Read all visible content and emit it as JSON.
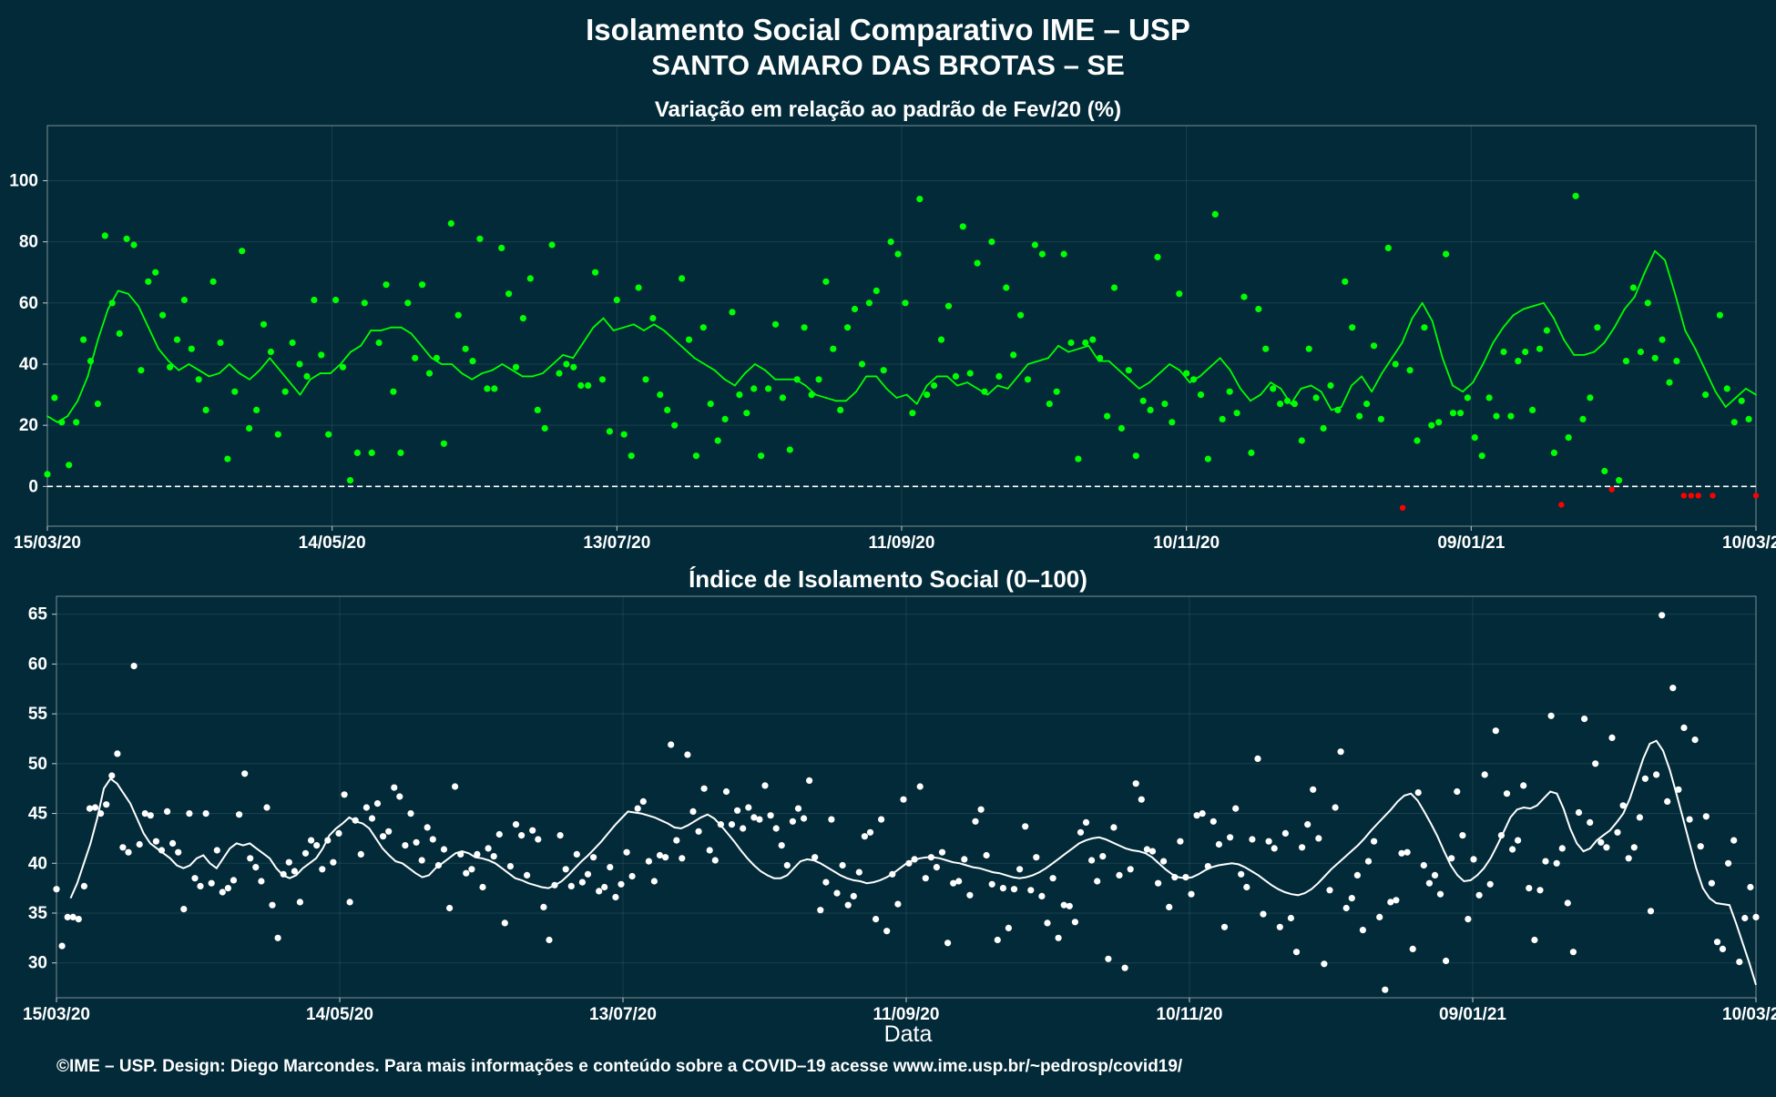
{
  "page": {
    "title_line1": "Isolamento Social Comparativo IME – USP",
    "title_line2": "SANTO AMARO DAS BROTAS – SE",
    "footer": "©IME – USP. Design: Diego Marcondes. Para mais informações e conteúdo sobre a COVID–19 acesse www.ime.usp.br/~pedrosp/covid19/"
  },
  "colors": {
    "background": "#022a38",
    "positive_points": "#00ff00",
    "negative_points": "#ff0000",
    "index_points": "#ffffff",
    "axis_text": "#ffffff"
  },
  "chart_data": [
    {
      "type": "scatter",
      "title": "Variação em relação ao padrão de Fev/20 (%)",
      "xlabel": "",
      "ylabel": "",
      "x_tick_labels": [
        "15/03/20",
        "14/05/20",
        "13/07/20",
        "11/09/20",
        "10/11/20",
        "09/01/21",
        "10/03/21"
      ],
      "x_range_days": [
        0,
        360
      ],
      "ylim": [
        -13,
        118
      ],
      "y_ticks": [
        0,
        20,
        40,
        60,
        80,
        100
      ],
      "reference_line": 0,
      "grid": true,
      "series": [
        {
          "role": "daily",
          "values": [
            4,
            29,
            21,
            7,
            21,
            48,
            41,
            27,
            82,
            60,
            50,
            81,
            79,
            38,
            67,
            70,
            56,
            39,
            48,
            61,
            45,
            35,
            25,
            67,
            47,
            9,
            31,
            77,
            19,
            25,
            53,
            44,
            17,
            31,
            47,
            40,
            36,
            61,
            43,
            17,
            61,
            39,
            2,
            11,
            60,
            11,
            47,
            66,
            31,
            11,
            60,
            42,
            66,
            37,
            42,
            14,
            86,
            56,
            45,
            41,
            81,
            32,
            32,
            78,
            63,
            39,
            55,
            68,
            25,
            19,
            79,
            37,
            40,
            39,
            33,
            33,
            70,
            35,
            18,
            61,
            17,
            10,
            65,
            35,
            55,
            30,
            25,
            20,
            68,
            48,
            10,
            52,
            27,
            15,
            22,
            57,
            30,
            24,
            32,
            10,
            32,
            53,
            29,
            12,
            35,
            52,
            30,
            35,
            67,
            45,
            25,
            52,
            58,
            40,
            60,
            64,
            38,
            80,
            76,
            60,
            24,
            94,
            30,
            33,
            48,
            59,
            36,
            85,
            37,
            73,
            31,
            80,
            36,
            65,
            43,
            56,
            35,
            79,
            76,
            27,
            31,
            76,
            47,
            9,
            47,
            48,
            42,
            23,
            65,
            19,
            38,
            10,
            28,
            25,
            75,
            27,
            21,
            63,
            37,
            35,
            30,
            9,
            89,
            22,
            31,
            24,
            62,
            11,
            58,
            45,
            32,
            27,
            28,
            27,
            15,
            45,
            29,
            19,
            33,
            25,
            67,
            52,
            23,
            27,
            46,
            22,
            78,
            40,
            -7,
            38,
            15,
            52,
            20,
            21,
            76,
            24,
            24,
            29,
            16,
            10,
            29,
            23,
            44,
            23,
            41,
            44,
            25,
            45,
            51,
            11,
            -6,
            16,
            95,
            22,
            29,
            52,
            5,
            -1,
            2,
            41,
            65,
            44,
            60,
            42,
            48,
            34,
            41,
            -3,
            -3,
            -3,
            30,
            -3,
            56,
            32,
            21,
            28,
            22,
            -3
          ],
          "note": "green = value > 0, red = value < 0"
        },
        {
          "role": "moving-average",
          "values": [
            23,
            21,
            23,
            28,
            36,
            48,
            58,
            64,
            63,
            59,
            52,
            45,
            41,
            38,
            40,
            38,
            36,
            37,
            40,
            37,
            35,
            38,
            42,
            38,
            34,
            30,
            35,
            37,
            37,
            40,
            44,
            46,
            51,
            51,
            52,
            52,
            50,
            46,
            42,
            40,
            40,
            37,
            35,
            37,
            38,
            40,
            38,
            36,
            36,
            37,
            40,
            43,
            42,
            47,
            52,
            55,
            51,
            52,
            53,
            51,
            53,
            51,
            48,
            45,
            42,
            40,
            38,
            35,
            33,
            37,
            40,
            38,
            35,
            35,
            35,
            33,
            30,
            29,
            28,
            28,
            31,
            36,
            36,
            32,
            29,
            30,
            27,
            33,
            36,
            36,
            33,
            34,
            32,
            30,
            33,
            32,
            36,
            40,
            41,
            42,
            46,
            44,
            45,
            46,
            41,
            41,
            38,
            35,
            32,
            34,
            37,
            40,
            38,
            34,
            36,
            39,
            42,
            38,
            32,
            28,
            30,
            34,
            32,
            27,
            32,
            33,
            31,
            25,
            26,
            33,
            36,
            31,
            37,
            42,
            47,
            55,
            60,
            54,
            42,
            33,
            31,
            34,
            40,
            47,
            52,
            56,
            58,
            59,
            60,
            55,
            48,
            43,
            43,
            44,
            47,
            52,
            58,
            62,
            70,
            77,
            74,
            63,
            51,
            45,
            38,
            31,
            26,
            29,
            32,
            30
          ]
        }
      ]
    },
    {
      "type": "scatter",
      "title": "Índice de Isolamento Social (0–100)",
      "xlabel": "Data",
      "ylabel": "",
      "x_tick_labels": [
        "15/03/20",
        "14/05/20",
        "13/07/20",
        "11/09/20",
        "10/11/20",
        "09/01/21",
        "10/03/21"
      ],
      "x_range_days": [
        0,
        360
      ],
      "ylim": [
        26.5,
        66.8
      ],
      "y_ticks": [
        30,
        35,
        40,
        45,
        50,
        55,
        60,
        65
      ],
      "grid": true,
      "series": [
        {
          "role": "daily",
          "values": [
            37.4,
            31.7,
            34.6,
            34.6,
            34.4,
            37.7,
            45.5,
            45.6,
            45.0,
            45.9,
            48.8,
            51.0,
            41.6,
            41.1,
            59.8,
            41.9,
            45.0,
            44.8,
            42.2,
            41.3,
            45.2,
            42.0,
            41.1,
            35.4,
            45.0,
            38.5,
            37.7,
            45.0,
            38.0,
            41.3,
            37.1,
            37.5,
            38.3,
            44.9,
            49.0,
            40.5,
            39.6,
            38.2,
            45.6,
            35.8,
            32.5,
            38.9,
            40.1,
            39.2,
            36.1,
            41.0,
            42.3,
            41.8,
            39.4,
            42.3,
            40.1,
            43.0,
            46.9,
            36.1,
            44.3,
            40.9,
            45.6,
            44.5,
            46.0,
            42.7,
            43.2,
            47.6,
            46.7,
            41.8,
            45.0,
            42.1,
            40.3,
            43.6,
            42.4,
            39.8,
            41.4,
            35.5,
            47.7,
            40.9,
            39.0,
            39.4,
            40.9,
            37.6,
            41.5,
            40.7,
            42.9,
            34.0,
            39.7,
            43.9,
            42.8,
            38.8,
            43.3,
            42.4,
            35.6,
            32.3,
            37.8,
            42.8,
            39.4,
            37.7,
            40.9,
            38.1,
            38.9,
            40.6,
            37.2,
            37.6,
            39.6,
            36.6,
            37.9,
            41.1,
            38.7,
            45.5,
            46.2,
            40.2,
            38.2,
            40.8,
            40.6,
            51.9,
            42.3,
            40.5,
            50.9,
            45.2,
            43.2,
            47.5,
            41.3,
            40.3,
            43.9,
            47.2,
            43.9,
            45.3,
            43.5,
            45.6,
            44.6,
            44.4,
            47.8,
            44.8,
            43.5,
            41.8,
            39.8,
            44.2,
            45.5,
            44.5,
            48.3,
            40.6,
            35.3,
            38.1,
            44.4,
            37.0,
            39.8,
            35.8,
            36.7,
            39.1,
            42.7,
            43.1,
            34.4,
            44.4,
            33.2,
            38.9,
            35.9,
            46.4,
            40.0,
            40.4,
            47.7,
            38.5,
            40.6,
            39.6,
            41.1,
            32.0,
            38.0,
            38.2,
            40.4,
            36.8,
            44.2,
            45.4,
            40.8,
            37.9,
            32.3,
            37.5,
            33.5,
            37.4,
            39.4,
            43.7,
            37.3,
            40.6,
            36.7,
            34.0,
            38.5,
            32.5,
            35.8,
            35.7,
            34.1,
            43.1,
            44.1,
            40.3,
            38.2,
            40.7,
            30.4,
            43.6,
            38.8,
            29.5,
            39.4,
            48.0,
            46.4,
            41.4,
            41.2,
            38.0,
            40.2,
            35.6,
            38.6,
            42.2,
            38.6,
            36.9,
            44.8,
            45.0,
            39.7,
            44.2,
            41.9,
            33.6,
            42.6,
            45.5,
            38.9,
            37.6,
            42.4,
            50.5,
            34.9,
            42.2,
            41.5,
            33.6,
            43.0,
            34.5,
            31.1,
            41.6,
            43.9,
            47.4,
            42.5,
            29.9,
            37.3,
            45.6,
            51.2,
            35.5,
            36.5,
            38.8,
            33.3,
            40.2,
            42.2,
            34.6,
            27.3,
            36.1,
            36.3,
            41.0,
            41.1,
            31.4,
            47.1,
            39.8,
            38.0,
            38.8,
            36.9,
            30.2,
            40.5,
            47.2,
            42.8,
            34.4,
            40.4,
            36.8,
            48.9,
            37.9,
            53.3,
            42.8,
            47.0,
            41.4,
            42.3,
            47.8,
            37.5,
            32.3,
            37.3,
            40.2,
            54.8,
            40.0,
            41.5,
            36.0,
            31.1,
            45.1,
            54.5,
            44.1,
            50.0,
            42.1,
            41.6,
            52.6,
            43.1,
            45.8,
            40.5,
            41.6,
            44.6,
            48.5,
            35.2,
            48.9,
            64.9,
            46.2,
            57.6,
            47.4,
            53.6,
            44.4,
            52.4,
            41.7,
            44.7,
            38.0,
            32.1,
            31.4,
            40.0,
            42.3,
            30.1,
            34.5,
            37.6,
            34.6
          ]
        },
        {
          "role": "moving-average",
          "values": [
            36.5,
            38.0,
            40.0,
            42.0,
            44.5,
            47.5,
            48.5,
            48.0,
            47.0,
            46.0,
            44.5,
            43.0,
            42.0,
            41.5,
            41.0,
            40.5,
            39.8,
            39.5,
            39.8,
            40.5,
            40.8,
            40.0,
            39.5,
            40.5,
            41.5,
            42.0,
            41.8,
            42.0,
            41.5,
            41.0,
            40.5,
            39.5,
            38.8,
            38.5,
            38.8,
            39.5,
            40.0,
            40.5,
            41.5,
            42.8,
            43.5,
            44.0,
            44.6,
            44.2,
            44.0,
            43.5,
            42.5,
            41.5,
            40.8,
            40.2,
            40.0,
            39.5,
            39.0,
            38.6,
            38.8,
            39.5,
            40.0,
            40.5,
            41.0,
            41.2,
            41.0,
            40.6,
            40.5,
            40.3,
            40.0,
            39.5,
            39.0,
            38.5,
            38.3,
            38.0,
            37.8,
            37.6,
            37.5,
            37.8,
            38.2,
            38.8,
            39.5,
            40.2,
            40.8,
            41.5,
            42.2,
            43.0,
            43.8,
            44.5,
            45.2,
            45.1,
            45.0,
            44.8,
            44.6,
            44.3,
            44.0,
            43.6,
            43.5,
            43.8,
            44.2,
            44.6,
            44.9,
            44.5,
            43.8,
            43.0,
            42.2,
            41.3,
            40.5,
            39.8,
            39.2,
            38.8,
            38.5,
            38.5,
            38.8,
            39.5,
            40.2,
            40.4,
            40.3,
            40.0,
            39.6,
            39.2,
            38.8,
            38.5,
            38.3,
            38.2,
            38.0,
            38.1,
            38.3,
            38.6,
            39.0,
            39.5,
            40.0,
            40.3,
            40.5,
            40.6,
            40.6,
            40.5,
            40.3,
            40.1,
            40.0,
            39.8,
            39.6,
            39.5,
            39.3,
            39.1,
            39.0,
            38.8,
            38.6,
            38.5,
            38.6,
            38.8,
            39.1,
            39.5,
            40.0,
            40.5,
            41.0,
            41.5,
            42.0,
            42.3,
            42.5,
            42.6,
            42.4,
            42.1,
            41.8,
            41.5,
            41.3,
            41.2,
            41.0,
            40.6,
            40.0,
            39.4,
            38.9,
            38.6,
            38.5,
            38.6,
            38.9,
            39.3,
            39.6,
            39.8,
            39.9,
            40.0,
            39.9,
            39.6,
            39.2,
            38.8,
            38.3,
            37.8,
            37.4,
            37.1,
            36.9,
            36.8,
            37.0,
            37.4,
            38.0,
            38.7,
            39.4,
            40.0,
            40.6,
            41.2,
            41.8,
            42.5,
            43.3,
            44.0,
            44.7,
            45.4,
            46.2,
            46.8,
            47.0,
            46.3,
            45.2,
            44.0,
            42.7,
            41.2,
            39.8,
            38.8,
            38.2,
            38.3,
            38.8,
            39.5,
            40.5,
            41.8,
            43.2,
            44.6,
            45.4,
            45.6,
            45.5,
            45.8,
            46.5,
            47.2,
            47.0,
            45.5,
            43.5,
            42.0,
            41.2,
            41.5,
            42.3,
            42.8,
            43.3,
            44.1,
            45.0,
            46.5,
            48.5,
            50.5,
            52.0,
            52.3,
            51.3,
            49.4,
            47.0,
            44.5,
            42.0,
            39.5,
            37.5,
            36.5,
            36.0,
            35.9,
            35.8,
            34.0,
            32.0,
            30.0,
            27.8
          ]
        }
      ]
    }
  ]
}
